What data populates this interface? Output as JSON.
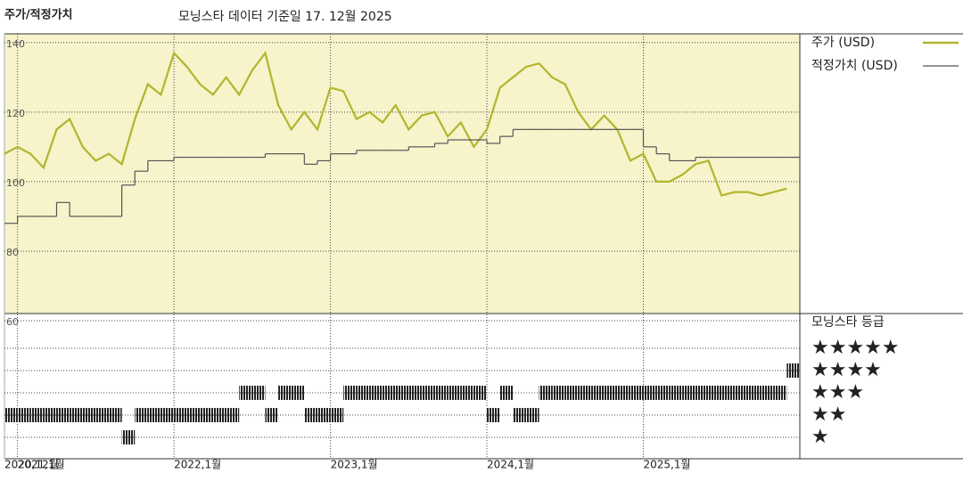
{
  "chart_data": {
    "type": "line",
    "title": "주가/적정가치",
    "subtitle": "모닝스타 데이터 기준일 17. 12월 2025",
    "x": [
      "2020-12",
      "2021-01",
      "2021-02",
      "2021-03",
      "2021-04",
      "2021-05",
      "2021-06",
      "2021-07",
      "2021-08",
      "2021-09",
      "2021-10",
      "2021-11",
      "2021-12",
      "2022-01",
      "2022-02",
      "2022-03",
      "2022-04",
      "2022-05",
      "2022-06",
      "2022-07",
      "2022-08",
      "2022-09",
      "2022-10",
      "2022-11",
      "2022-12",
      "2023-01",
      "2023-02",
      "2023-03",
      "2023-04",
      "2023-05",
      "2023-06",
      "2023-07",
      "2023-08",
      "2023-09",
      "2023-10",
      "2023-11",
      "2023-12",
      "2024-01",
      "2024-02",
      "2024-03",
      "2024-04",
      "2024-05",
      "2024-06",
      "2024-07",
      "2024-08",
      "2024-09",
      "2024-10",
      "2024-11",
      "2024-12",
      "2025-01",
      "2025-02",
      "2025-03",
      "2025-04",
      "2025-05",
      "2025-06",
      "2025-07",
      "2025-08",
      "2025-09",
      "2025-10",
      "2025-11",
      "2025-12"
    ],
    "xlim": [
      "2020-12",
      "2026-01"
    ],
    "xticks": [
      {
        "value": "2020-12",
        "label": "2020,12월"
      },
      {
        "value": "2021-01",
        "label": "2021,1월"
      },
      {
        "value": "2022-01",
        "label": "2022,1월"
      },
      {
        "value": "2023-01",
        "label": "2023,1월"
      },
      {
        "value": "2024-01",
        "label": "2024,1월"
      },
      {
        "value": "2025-01",
        "label": "2025,1월"
      }
    ],
    "ylim": [
      60,
      142.5
    ],
    "yticks": [
      60,
      80,
      100,
      120,
      140
    ],
    "grid": true,
    "series": [
      {
        "name": "주가 (USD)",
        "color": "#b3b52c",
        "style": "line",
        "values": [
          108,
          110,
          108,
          104,
          115,
          118,
          110,
          106,
          108,
          105,
          118,
          128,
          125,
          137,
          133,
          128,
          125,
          130,
          125,
          132,
          137,
          122,
          115,
          120,
          115,
          127,
          126,
          118,
          120,
          117,
          122,
          115,
          119,
          120,
          113,
          117,
          110,
          115,
          127,
          130,
          133,
          134,
          130,
          128,
          120,
          115,
          119,
          115,
          106,
          108,
          100,
          100,
          102,
          105,
          106,
          96,
          97,
          97,
          96,
          97,
          98
        ]
      },
      {
        "name": "적정가치 (USD)",
        "color": "#555555",
        "style": "step",
        "values": [
          88,
          90,
          90,
          90,
          94,
          90,
          90,
          90,
          90,
          99,
          103,
          106,
          106,
          107,
          107,
          107,
          107,
          107,
          107,
          107,
          108,
          108,
          108,
          105,
          106,
          108,
          108,
          109,
          109,
          109,
          109,
          110,
          110,
          111,
          112,
          112,
          112,
          111,
          113,
          115,
          115,
          115,
          115,
          115,
          115,
          115,
          115,
          115,
          115,
          110,
          108,
          106,
          106,
          107,
          107,
          107,
          107,
          107,
          107,
          107,
          107
        ]
      }
    ],
    "ratings": {
      "title": "모닝스타 등급",
      "levels": [
        "★",
        "★★",
        "★★★",
        "★★★★",
        "★★★★★"
      ],
      "values": [
        2,
        2,
        2,
        2,
        2,
        2,
        2,
        2,
        2,
        1,
        2,
        2,
        2,
        2,
        2,
        2,
        2,
        2,
        3,
        3,
        2,
        3,
        3,
        2,
        2,
        2,
        3,
        3,
        3,
        3,
        3,
        3,
        3,
        3,
        3,
        3,
        3,
        2,
        3,
        2,
        2,
        3,
        3,
        3,
        3,
        3,
        3,
        3,
        3,
        3,
        3,
        3,
        3,
        3,
        3,
        3,
        3,
        3,
        3,
        3,
        4
      ]
    }
  }
}
